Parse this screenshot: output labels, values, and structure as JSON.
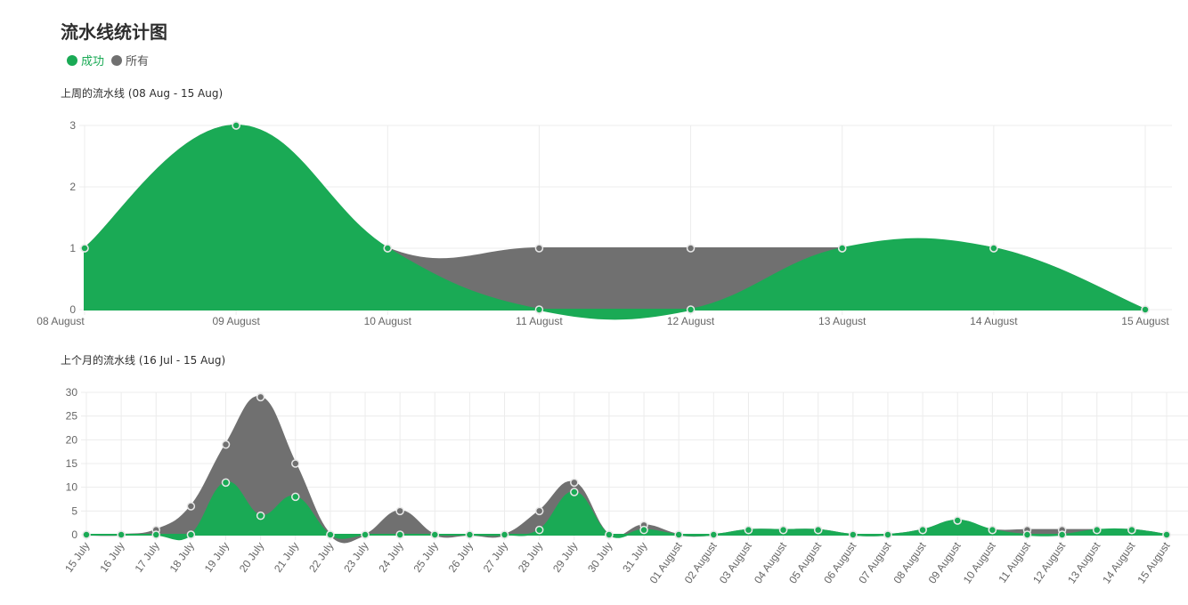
{
  "title": "流水线统计图",
  "legend": [
    {
      "label": "成功",
      "color": "#1aaa55"
    },
    {
      "label": "所有",
      "color": "#707070"
    }
  ],
  "chart_data": [
    {
      "type": "area",
      "title": "上周的流水线 (08 Aug - 15 Aug)",
      "categories": [
        "08 August",
        "09 August",
        "10 August",
        "11 August",
        "12 August",
        "13 August",
        "14 August",
        "15 August"
      ],
      "series": [
        {
          "name": "成功",
          "color": "#1aaa55",
          "values": [
            1,
            3,
            1,
            0,
            0,
            1,
            1,
            0
          ]
        },
        {
          "name": "所有",
          "color": "#707070",
          "values": [
            1,
            3,
            1,
            1,
            1,
            1,
            1,
            0
          ]
        }
      ],
      "ylim": [
        0,
        3
      ],
      "yticks": [
        0,
        1,
        2,
        3
      ],
      "grid": true,
      "xlabel_rotation": 0
    },
    {
      "type": "area",
      "title": "上个月的流水线 (16 Jul - 15 Aug)",
      "categories": [
        "15 July",
        "16 July",
        "17 July",
        "18 July",
        "19 July",
        "20 July",
        "21 July",
        "22 July",
        "23 July",
        "24 July",
        "25 July",
        "26 July",
        "27 July",
        "28 July",
        "29 July",
        "30 July",
        "31 July",
        "01 August",
        "02 August",
        "03 August",
        "04 August",
        "05 August",
        "06 August",
        "07 August",
        "08 August",
        "09 August",
        "10 August",
        "11 August",
        "12 August",
        "13 August",
        "14 August",
        "15 August"
      ],
      "series": [
        {
          "name": "成功",
          "color": "#1aaa55",
          "values": [
            0,
            0,
            0,
            0,
            11,
            4,
            8,
            0,
            0,
            0,
            0,
            0,
            0,
            1,
            9,
            0,
            1,
            0,
            0,
            1,
            1,
            1,
            0,
            0,
            1,
            3,
            1,
            0,
            0,
            1,
            1,
            0
          ]
        },
        {
          "name": "所有",
          "color": "#707070",
          "values": [
            0,
            0,
            1,
            6,
            19,
            29,
            15,
            0,
            0,
            5,
            0,
            0,
            0,
            5,
            11,
            0,
            2,
            0,
            0,
            1,
            1,
            1,
            0,
            0,
            1,
            3,
            1,
            1,
            1,
            1,
            1,
            0
          ]
        }
      ],
      "ylim": [
        0,
        30
      ],
      "yticks": [
        0,
        5,
        10,
        15,
        20,
        25,
        30
      ],
      "grid": true,
      "xlabel_rotation": -55
    }
  ]
}
